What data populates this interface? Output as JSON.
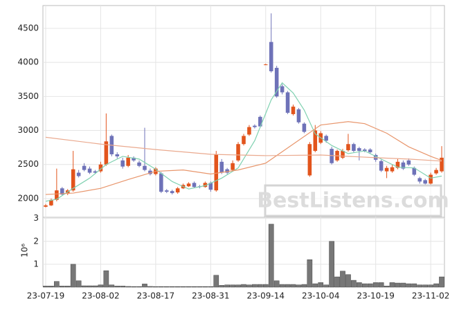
{
  "chart_data": {
    "type": "candlestick",
    "up_color": "#e2541c",
    "down_color": "#6e72b8",
    "grid": true,
    "watermark": "BestListens.com",
    "categories": [
      "23-07-19",
      null,
      null,
      null,
      null,
      null,
      null,
      null,
      null,
      null,
      "23-08-02",
      null,
      null,
      null,
      null,
      null,
      null,
      null,
      null,
      null,
      "23-08-17",
      null,
      null,
      null,
      null,
      null,
      null,
      null,
      null,
      null,
      "23-08-31",
      null,
      null,
      null,
      null,
      null,
      null,
      null,
      null,
      null,
      "23-09-14",
      null,
      null,
      null,
      null,
      null,
      null,
      null,
      null,
      null,
      "23-10-04",
      null,
      null,
      null,
      null,
      null,
      null,
      null,
      null,
      null,
      "23-10-19",
      null,
      null,
      null,
      null,
      null,
      null,
      null,
      null,
      null,
      "23-11-02",
      null,
      null
    ],
    "open": [
      1880,
      1900,
      1980,
      2150,
      2070,
      2120,
      2380,
      2480,
      2440,
      2400,
      2400,
      2500,
      2920,
      2650,
      2560,
      2480,
      2600,
      2530,
      2480,
      2410,
      2360,
      2370,
      2120,
      2110,
      2090,
      2150,
      2180,
      2230,
      2180,
      2170,
      2230,
      2120,
      2540,
      2430,
      2420,
      2560,
      2800,
      2940,
      3070,
      3200,
      3970,
      4300,
      3920,
      3650,
      3560,
      3240,
      3310,
      3100,
      2340,
      2700,
      2820,
      2920,
      2730,
      2560,
      2600,
      2710,
      2800,
      2740,
      2720,
      2720,
      2640,
      2550,
      2400,
      2400,
      2450,
      2530,
      2560,
      2450,
      2300,
      2270,
      2220,
      2370,
      2400
    ],
    "high": [
      1920,
      2000,
      2440,
      2170,
      2140,
      2700,
      2420,
      2520,
      2470,
      2420,
      2540,
      3250,
      2940,
      2680,
      2600,
      2640,
      2620,
      2560,
      3040,
      2440,
      2460,
      2390,
      2140,
      2130,
      2170,
      2220,
      2240,
      2250,
      2200,
      2250,
      2250,
      2700,
      2580,
      2450,
      2560,
      2830,
      2950,
      3080,
      3090,
      3220,
      3980,
      4720,
      3950,
      3680,
      3580,
      3380,
      3330,
      3120,
      2830,
      3080,
      2990,
      2940,
      2760,
      2720,
      2730,
      2950,
      2820,
      2760,
      2740,
      2740,
      2660,
      2570,
      2480,
      2500,
      2580,
      2560,
      2590,
      2470,
      2320,
      2290,
      2380,
      2450,
      2770
    ],
    "low": [
      1870,
      1890,
      1960,
      2040,
      2050,
      2100,
      2310,
      2400,
      2360,
      2360,
      2380,
      2480,
      2620,
      2590,
      2440,
      2460,
      2540,
      2460,
      2400,
      2340,
      2340,
      2080,
      2080,
      2060,
      2070,
      2140,
      2170,
      2160,
      2150,
      2160,
      2100,
      2100,
      2360,
      2360,
      2400,
      2540,
      2780,
      2920,
      3030,
      3040,
      3960,
      3850,
      3480,
      3530,
      3240,
      3220,
      3100,
      2960,
      2320,
      2680,
      2800,
      2820,
      2500,
      2540,
      2580,
      2690,
      2680,
      2560,
      2680,
      2660,
      2540,
      2390,
      2300,
      2380,
      2430,
      2420,
      2480,
      2330,
      2220,
      2200,
      2190,
      2350,
      2380
    ],
    "close": [
      1900,
      1980,
      2120,
      2060,
      2120,
      2430,
      2330,
      2420,
      2380,
      2380,
      2500,
      2840,
      2650,
      2620,
      2470,
      2600,
      2560,
      2480,
      2420,
      2360,
      2440,
      2100,
      2100,
      2080,
      2150,
      2200,
      2220,
      2170,
      2170,
      2230,
      2130,
      2650,
      2380,
      2380,
      2520,
      2800,
      2920,
      3050,
      3050,
      3060,
      3970,
      3870,
      3500,
      3560,
      3260,
      3350,
      3120,
      2980,
      2800,
      3000,
      2960,
      2850,
      2520,
      2700,
      2700,
      2800,
      2700,
      2700,
      2700,
      2680,
      2570,
      2410,
      2450,
      2460,
      2540,
      2440,
      2500,
      2350,
      2250,
      2220,
      2350,
      2420,
      2600
    ],
    "series": [
      {
        "color": "#7fd1b0",
        "x": [
          0,
          2,
          5,
          8,
          11,
          14,
          17,
          20,
          23,
          26,
          29,
          32,
          35,
          38,
          41,
          43,
          45,
          47,
          49,
          52,
          55,
          58,
          61,
          64,
          67,
          70,
          72
        ],
        "values": [
          1960,
          1990,
          2150,
          2300,
          2500,
          2620,
          2580,
          2430,
          2250,
          2140,
          2190,
          2300,
          2450,
          2850,
          3450,
          3700,
          3550,
          3300,
          2950,
          2780,
          2660,
          2700,
          2580,
          2460,
          2450,
          2300,
          2330
        ]
      },
      {
        "color": "#e8956b",
        "x": [
          0,
          5,
          10,
          15,
          20,
          25,
          30,
          35,
          40,
          45,
          50,
          55,
          58,
          62,
          66,
          70,
          72
        ],
        "values": [
          2060,
          2080,
          2150,
          2280,
          2400,
          2420,
          2360,
          2420,
          2520,
          2800,
          3080,
          3130,
          3100,
          2960,
          2760,
          2620,
          2560
        ]
      },
      {
        "color": "#eaa98e",
        "x": [
          0,
          10,
          20,
          30,
          40,
          50,
          60,
          66,
          72
        ],
        "values": [
          2900,
          2800,
          2720,
          2650,
          2630,
          2640,
          2600,
          2580,
          2550
        ]
      }
    ],
    "ylim": [
      1725,
      4835
    ],
    "yticks": [
      2000,
      2500,
      3000,
      3500,
      4000,
      4500
    ],
    "volume": {
      "ylabel": "10⁶",
      "color": "#777777",
      "ylim": [
        0,
        3.05
      ],
      "yticks": [
        1,
        2,
        3
      ],
      "values": [
        0.05,
        0.05,
        0.25,
        0.05,
        0.05,
        1.0,
        0.28,
        0.06,
        0.06,
        0.06,
        0.1,
        0.72,
        0.1,
        0.05,
        0.05,
        0.03,
        0.02,
        0.02,
        0.14,
        0.03,
        0.02,
        0.02,
        0.02,
        0.02,
        0.02,
        0.02,
        0.02,
        0.02,
        0.02,
        0.02,
        0.02,
        0.52,
        0.08,
        0.1,
        0.1,
        0.1,
        0.12,
        0.1,
        0.12,
        0.12,
        0.12,
        2.75,
        0.28,
        0.12,
        0.12,
        0.12,
        0.1,
        0.12,
        1.2,
        0.15,
        0.2,
        0.1,
        2.0,
        0.45,
        0.7,
        0.55,
        0.3,
        0.2,
        0.15,
        0.15,
        0.2,
        0.2,
        0.05,
        0.2,
        0.18,
        0.18,
        0.15,
        0.15,
        0.1,
        0.1,
        0.1,
        0.15,
        0.45
      ]
    }
  }
}
